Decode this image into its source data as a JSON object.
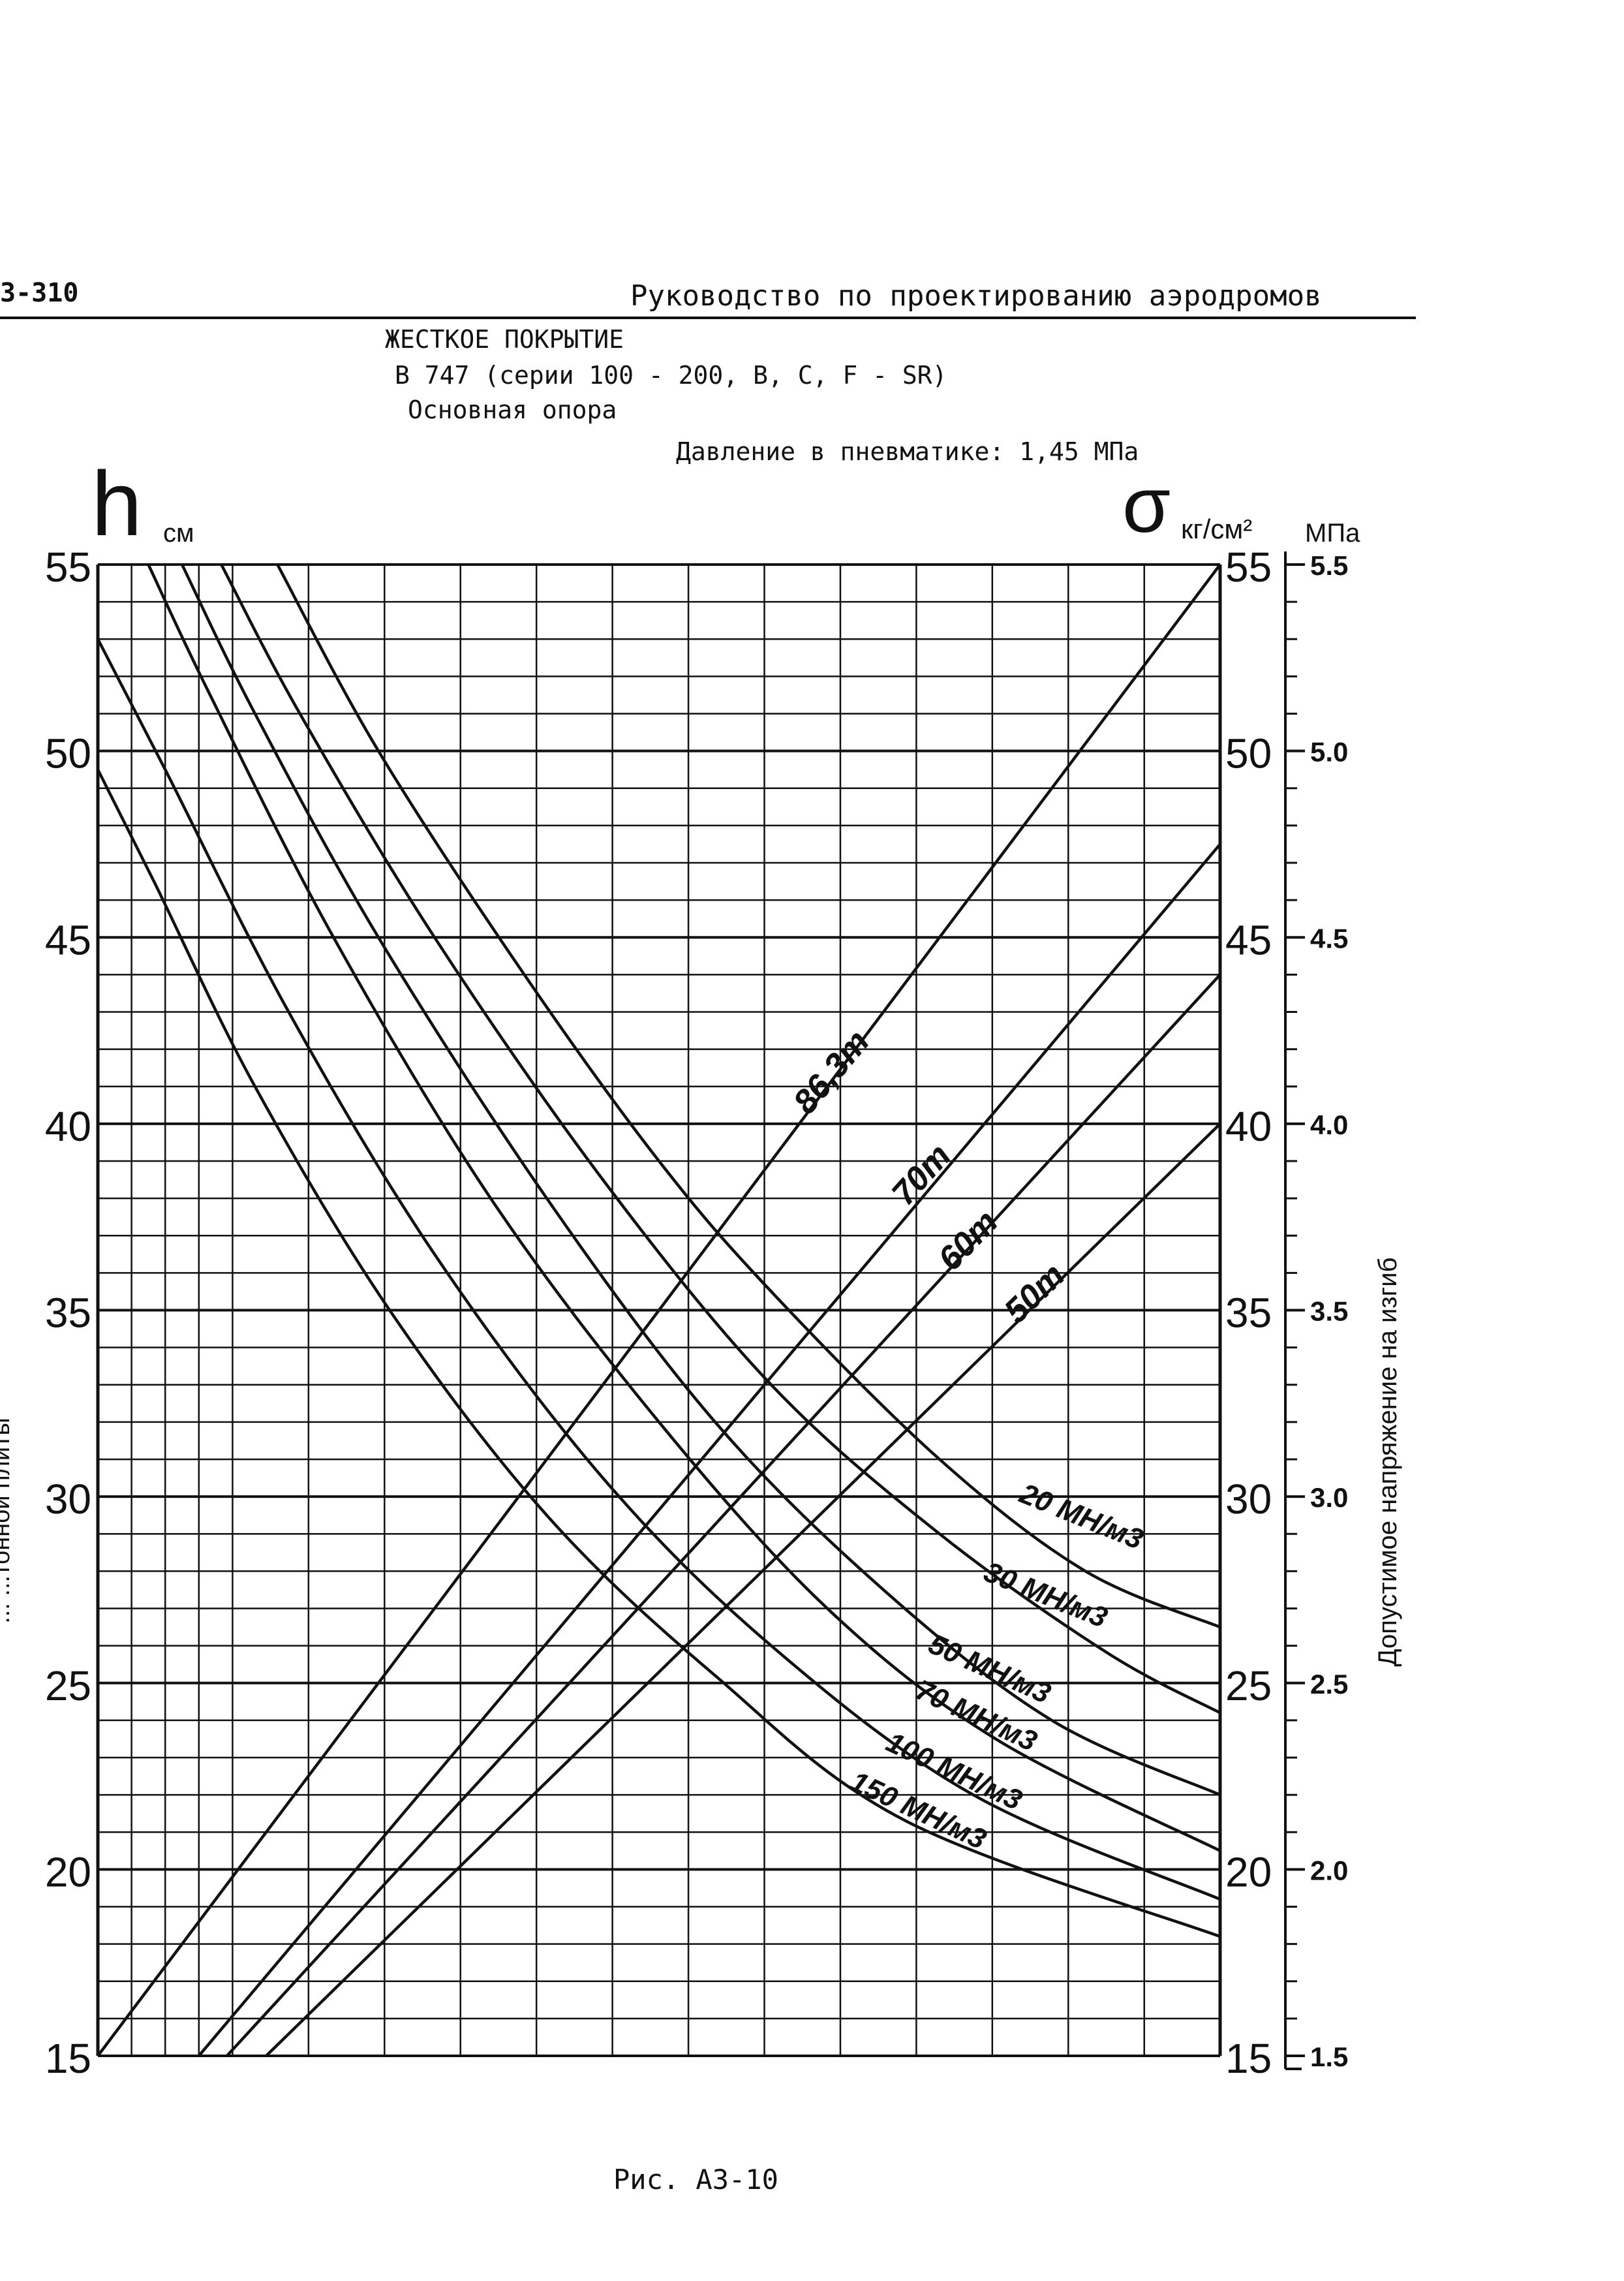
{
  "header": {
    "doc_code": "3-310",
    "doc_title": "Руководство по проектированию аэродромов",
    "subtitle_1": "ЖЕСТКОЕ ПОКРЫТИЕ",
    "subtitle_2": "В 747 (серии 100 - 200, В, С, F - SR)",
    "subtitle_3": "Основная опора",
    "subtitle_4": "Давление в пневматике: 1,45 МПа"
  },
  "caption": "Рис. А3-10",
  "chart_data": {
    "type": "line",
    "left_axis": {
      "symbol": "h",
      "unit": "см",
      "range": [
        15,
        55
      ],
      "ticks": [
        "15",
        "20",
        "25",
        "30",
        "35",
        "40",
        "45",
        "50",
        "55"
      ],
      "title": "... ...тонной плиты"
    },
    "right_axis": {
      "symbol": "σ",
      "unit": "кг/см²",
      "range": [
        15,
        55
      ],
      "ticks": [
        "15",
        "20",
        "25",
        "30",
        "35",
        "40",
        "45",
        "50",
        "55"
      ]
    },
    "mpa_axis": {
      "unit": "МПа",
      "range": [
        1.5,
        5.5
      ],
      "ticks": [
        "1.5",
        "2.0",
        "2.5",
        "3.0",
        "3.5",
        "4.0",
        "4.5",
        "5.0",
        "5.5"
      ],
      "title": "Допустимое напряжение на изгиб"
    },
    "grid": true,
    "x_range": [
      0,
      1
    ],
    "load_lines": [
      {
        "label": "86,3т",
        "points": [
          [
            0,
            15
          ],
          [
            1,
            55
          ]
        ]
      },
      {
        "label": "70т",
        "points": [
          [
            0.09,
            15
          ],
          [
            1,
            47.5
          ]
        ]
      },
      {
        "label": "60т",
        "points": [
          [
            0.115,
            15
          ],
          [
            1,
            44
          ]
        ]
      },
      {
        "label": "50т",
        "points": [
          [
            0.15,
            15
          ],
          [
            1,
            40
          ]
        ]
      }
    ],
    "subgrade_curves": [
      {
        "label": "20 МН/м3",
        "points": [
          [
            0.16,
            55
          ],
          [
            0.25,
            50
          ],
          [
            0.38,
            44
          ],
          [
            0.5,
            39
          ],
          [
            0.6,
            35.5
          ],
          [
            0.75,
            31
          ],
          [
            0.88,
            28
          ],
          [
            1,
            26.5
          ]
        ]
      },
      {
        "label": "30 МН/м3",
        "points": [
          [
            0.11,
            55
          ],
          [
            0.18,
            51
          ],
          [
            0.3,
            45
          ],
          [
            0.45,
            38.5
          ],
          [
            0.6,
            33
          ],
          [
            0.75,
            29
          ],
          [
            0.9,
            25.8
          ],
          [
            1,
            24.2
          ]
        ]
      },
      {
        "label": "50 МН/м3",
        "points": [
          [
            0.075,
            55
          ],
          [
            0.14,
            51
          ],
          [
            0.25,
            45
          ],
          [
            0.4,
            38
          ],
          [
            0.55,
            32
          ],
          [
            0.7,
            27.5
          ],
          [
            0.85,
            24
          ],
          [
            1,
            22
          ]
        ]
      },
      {
        "label": "70 МН/м3",
        "points": [
          [
            0.045,
            55
          ],
          [
            0.1,
            51.5
          ],
          [
            0.21,
            45
          ],
          [
            0.35,
            38
          ],
          [
            0.5,
            32
          ],
          [
            0.65,
            27
          ],
          [
            0.8,
            23.5
          ],
          [
            1,
            20.5
          ]
        ]
      },
      {
        "label": "100 МН/м3",
        "points": [
          [
            0,
            53
          ],
          [
            0.06,
            49.5
          ],
          [
            0.17,
            43
          ],
          [
            0.3,
            36.5
          ],
          [
            0.45,
            30.5
          ],
          [
            0.6,
            26
          ],
          [
            0.78,
            22
          ],
          [
            1,
            19.2
          ]
        ]
      },
      {
        "label": "150 МН/м3",
        "points": [
          [
            0,
            49.5
          ],
          [
            0.05,
            46.5
          ],
          [
            0.14,
            41
          ],
          [
            0.26,
            35
          ],
          [
            0.4,
            29.5
          ],
          [
            0.55,
            25.2
          ],
          [
            0.72,
            21.3
          ],
          [
            1,
            18.2
          ]
        ]
      }
    ]
  }
}
